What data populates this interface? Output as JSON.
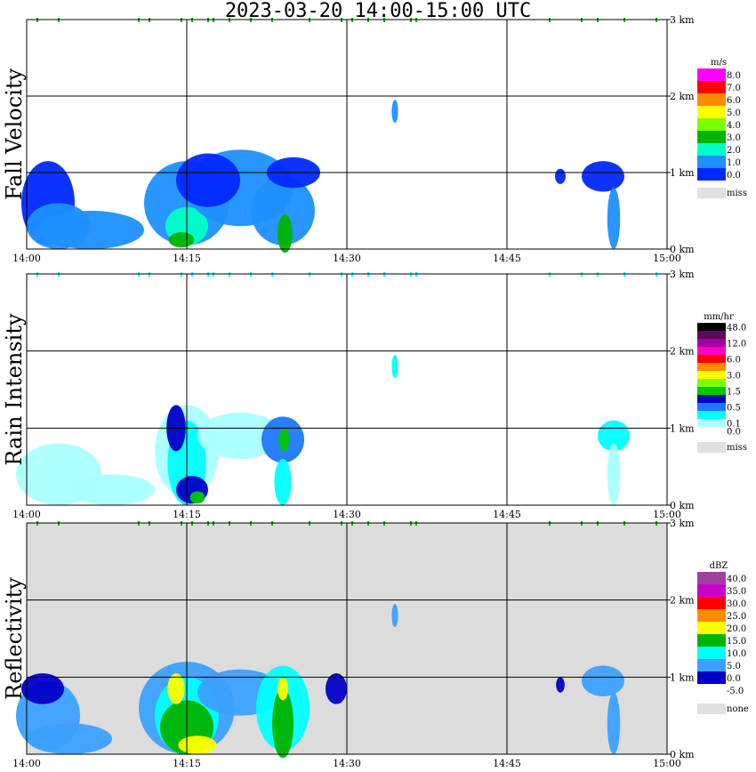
{
  "title": "2023-03-20  14:00-15:00 UTC",
  "chart_data": [
    {
      "type": "heatmap",
      "ylabel": "Fall Velocity",
      "x_ticks": [
        "14:00",
        "14:15",
        "14:30",
        "14:45",
        "15:00"
      ],
      "y_ticks": [
        "0 km",
        "1 km",
        "2 km",
        "3 km"
      ],
      "ylim_km": [
        0,
        3
      ],
      "legend_unit": "m/s",
      "legend": [
        {
          "label": "8.0",
          "color": "#ff00ff"
        },
        {
          "label": "7.0",
          "color": "#ff0000"
        },
        {
          "label": "6.0",
          "color": "#ff8c00"
        },
        {
          "label": "5.0",
          "color": "#ffff00"
        },
        {
          "label": "4.0",
          "color": "#7cff00"
        },
        {
          "label": "3.0",
          "color": "#00b400"
        },
        {
          "label": "2.0",
          "color": "#00ffc8"
        },
        {
          "label": "1.0",
          "color": "#1e90ff"
        },
        {
          "label": "0.0",
          "color": "#0028ff"
        }
      ],
      "missing_label": "miss",
      "missing_color": "#e0e0e0",
      "background": "#ffffff"
    },
    {
      "type": "heatmap",
      "ylabel": "Rain Intensity",
      "x_ticks": [
        "14:00",
        "14:15",
        "14:30",
        "14:45",
        "15:00"
      ],
      "y_ticks": [
        "0 km",
        "1 km",
        "2 km",
        "3 km"
      ],
      "ylim_km": [
        0,
        3
      ],
      "legend_unit": "mm/hr",
      "legend": [
        {
          "label": "48.0",
          "color": "#000000"
        },
        {
          "label": "",
          "color": "#5a0a5a"
        },
        {
          "label": "12.0",
          "color": "#a000a0"
        },
        {
          "label": "",
          "color": "#ff00c8"
        },
        {
          "label": "6.0",
          "color": "#ff0000"
        },
        {
          "label": "",
          "color": "#ff8c00"
        },
        {
          "label": "3.0",
          "color": "#ffff00"
        },
        {
          "label": "",
          "color": "#7cff00"
        },
        {
          "label": "1.5",
          "color": "#00c800"
        },
        {
          "label": "",
          "color": "#0000c8"
        },
        {
          "label": "0.5",
          "color": "#1e78ff"
        },
        {
          "label": "",
          "color": "#00ffff"
        },
        {
          "label": "0.1",
          "color": "#aaffff"
        },
        {
          "label": "0.0",
          "color": "#ffffff"
        }
      ],
      "missing_label": "miss",
      "missing_color": "#e0e0e0",
      "background": "#ffffff"
    },
    {
      "type": "heatmap",
      "ylabel": "Reflectivity",
      "x_ticks": [
        "14:00",
        "14:15",
        "14:30",
        "14:45",
        "15:00"
      ],
      "y_ticks": [
        "0 km",
        "1 km",
        "2 km",
        "3 km"
      ],
      "ylim_km": [
        0,
        3
      ],
      "legend_unit": "dBZ",
      "legend": [
        {
          "label": "40.0",
          "color": "#a040a0"
        },
        {
          "label": "35.0",
          "color": "#c800c8"
        },
        {
          "label": "30.0",
          "color": "#ff0000"
        },
        {
          "label": "25.0",
          "color": "#ff8c00"
        },
        {
          "label": "20.0",
          "color": "#ffff00"
        },
        {
          "label": "15.0",
          "color": "#00b400"
        },
        {
          "label": "10.0",
          "color": "#00ffff"
        },
        {
          "label": "5.0",
          "color": "#3ca0ff"
        },
        {
          "label": "0.0",
          "color": "#0000c8"
        },
        {
          "label": "-5.0",
          "color": "#ffffff"
        }
      ],
      "missing_label": "none",
      "missing_color": "#e0e0e0",
      "background": "#dcdcdc"
    }
  ]
}
